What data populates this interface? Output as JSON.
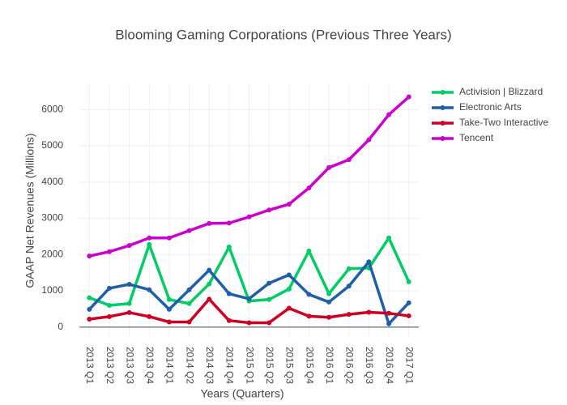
{
  "chart_data": {
    "type": "line",
    "title": "Blooming Gaming Corporations (Previous Three Years)",
    "x_label": "Years (Quarters)",
    "y_label": "GAAP Net Revenues (Millions)",
    "categories": [
      "2013 Q1",
      "2013 Q2",
      "2013 Q3",
      "2013 Q4",
      "2014 Q1",
      "2014 Q2",
      "2014 Q3",
      "2014 Q4",
      "2015 Q1",
      "2015 Q2",
      "2015 Q3",
      "2015 Q4",
      "2016 Q1",
      "2016 Q2",
      "2016 Q3",
      "2016 Q4",
      "2017 Q1"
    ],
    "series": [
      {
        "name": "Activision | Blizzard",
        "color": "#00cc66",
        "values": [
          810,
          600,
          650,
          2280,
          760,
          650,
          1190,
          2210,
          720,
          760,
          1050,
          2100,
          920,
          1610,
          1630,
          2460,
          1250
        ]
      },
      {
        "name": "Electronic Arts",
        "color": "#1f5fa8",
        "values": [
          490,
          1070,
          1180,
          1030,
          490,
          1030,
          1570,
          920,
          780,
          1210,
          1440,
          900,
          690,
          1130,
          1800,
          90,
          670
        ]
      },
      {
        "name": "Take-Two Interactive",
        "color": "#cc0022",
        "values": [
          220,
          290,
          400,
          290,
          140,
          140,
          770,
          180,
          120,
          120,
          520,
          300,
          270,
          350,
          410,
          380,
          310
        ]
      },
      {
        "name": "Tencent",
        "color": "#cc00cc",
        "values": [
          1960,
          2080,
          2250,
          2460,
          2460,
          2660,
          2860,
          2870,
          3040,
          3230,
          3390,
          3840,
          4400,
          4620,
          5170,
          5860,
          6350
        ]
      }
    ],
    "ylim": [
      -250,
      6700
    ],
    "yticks": [
      0,
      1000,
      2000,
      3000,
      4000,
      5000,
      6000
    ],
    "grid": true,
    "legend": "top-right"
  }
}
